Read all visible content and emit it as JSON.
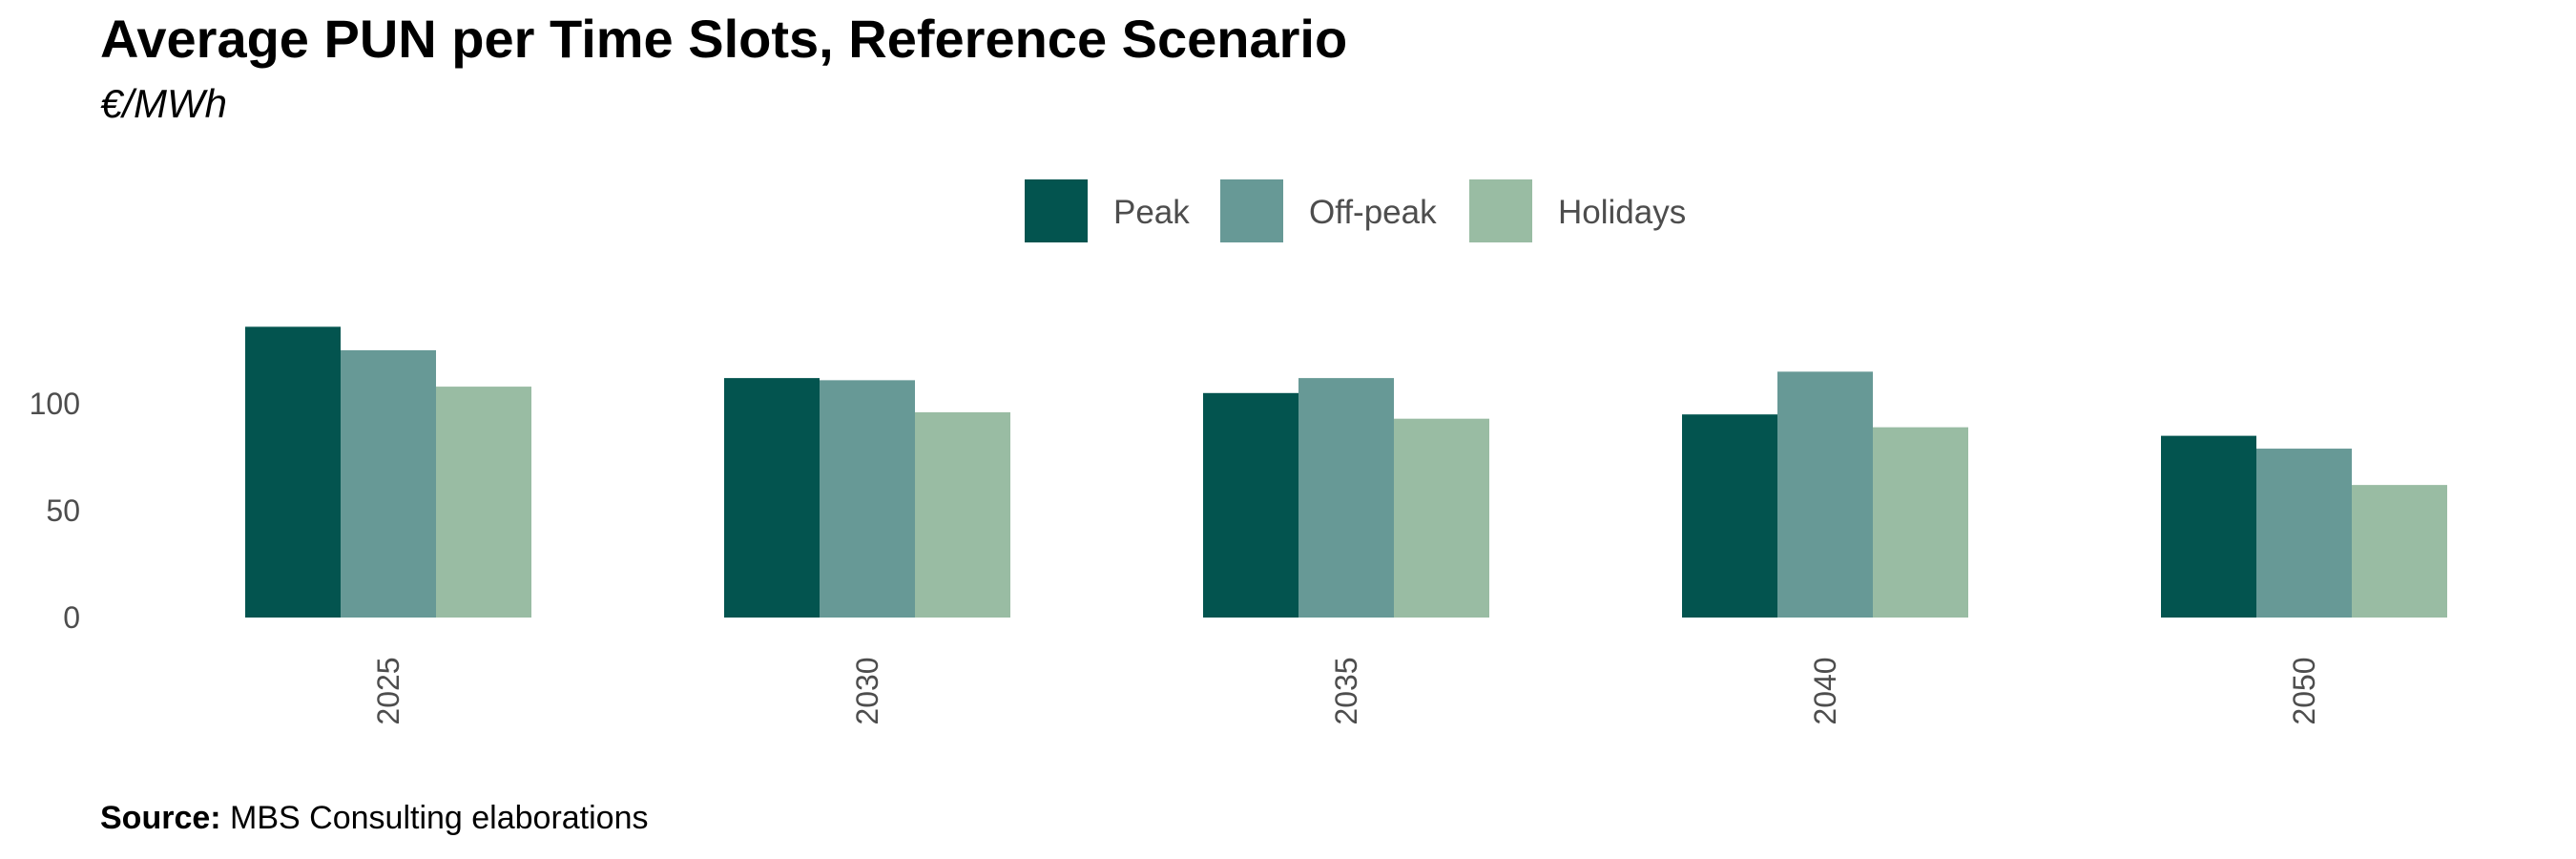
{
  "title": "Average PUN per Time Slots, Reference Scenario",
  "subtitle": "€/MWh",
  "source": {
    "label": "Source:",
    "text": " MBS Consulting elaborations"
  },
  "chart_data": {
    "type": "bar",
    "categories": [
      "2025",
      "2030",
      "2035",
      "2040",
      "2050"
    ],
    "series": [
      {
        "name": "Peak",
        "color": "#03544f",
        "values": [
          136,
          112,
          105,
          95,
          85
        ]
      },
      {
        "name": "Off-peak",
        "color": "#679996",
        "values": [
          125,
          111,
          112,
          115,
          79
        ]
      },
      {
        "name": "Holidays",
        "color": "#99bca3",
        "values": [
          108,
          96,
          93,
          89,
          62
        ]
      }
    ],
    "yticks": [
      0,
      50,
      100
    ],
    "ylim": [
      0,
      150
    ],
    "grid": false,
    "legend_position": "top-center",
    "xtick_rotation": "vertical"
  }
}
